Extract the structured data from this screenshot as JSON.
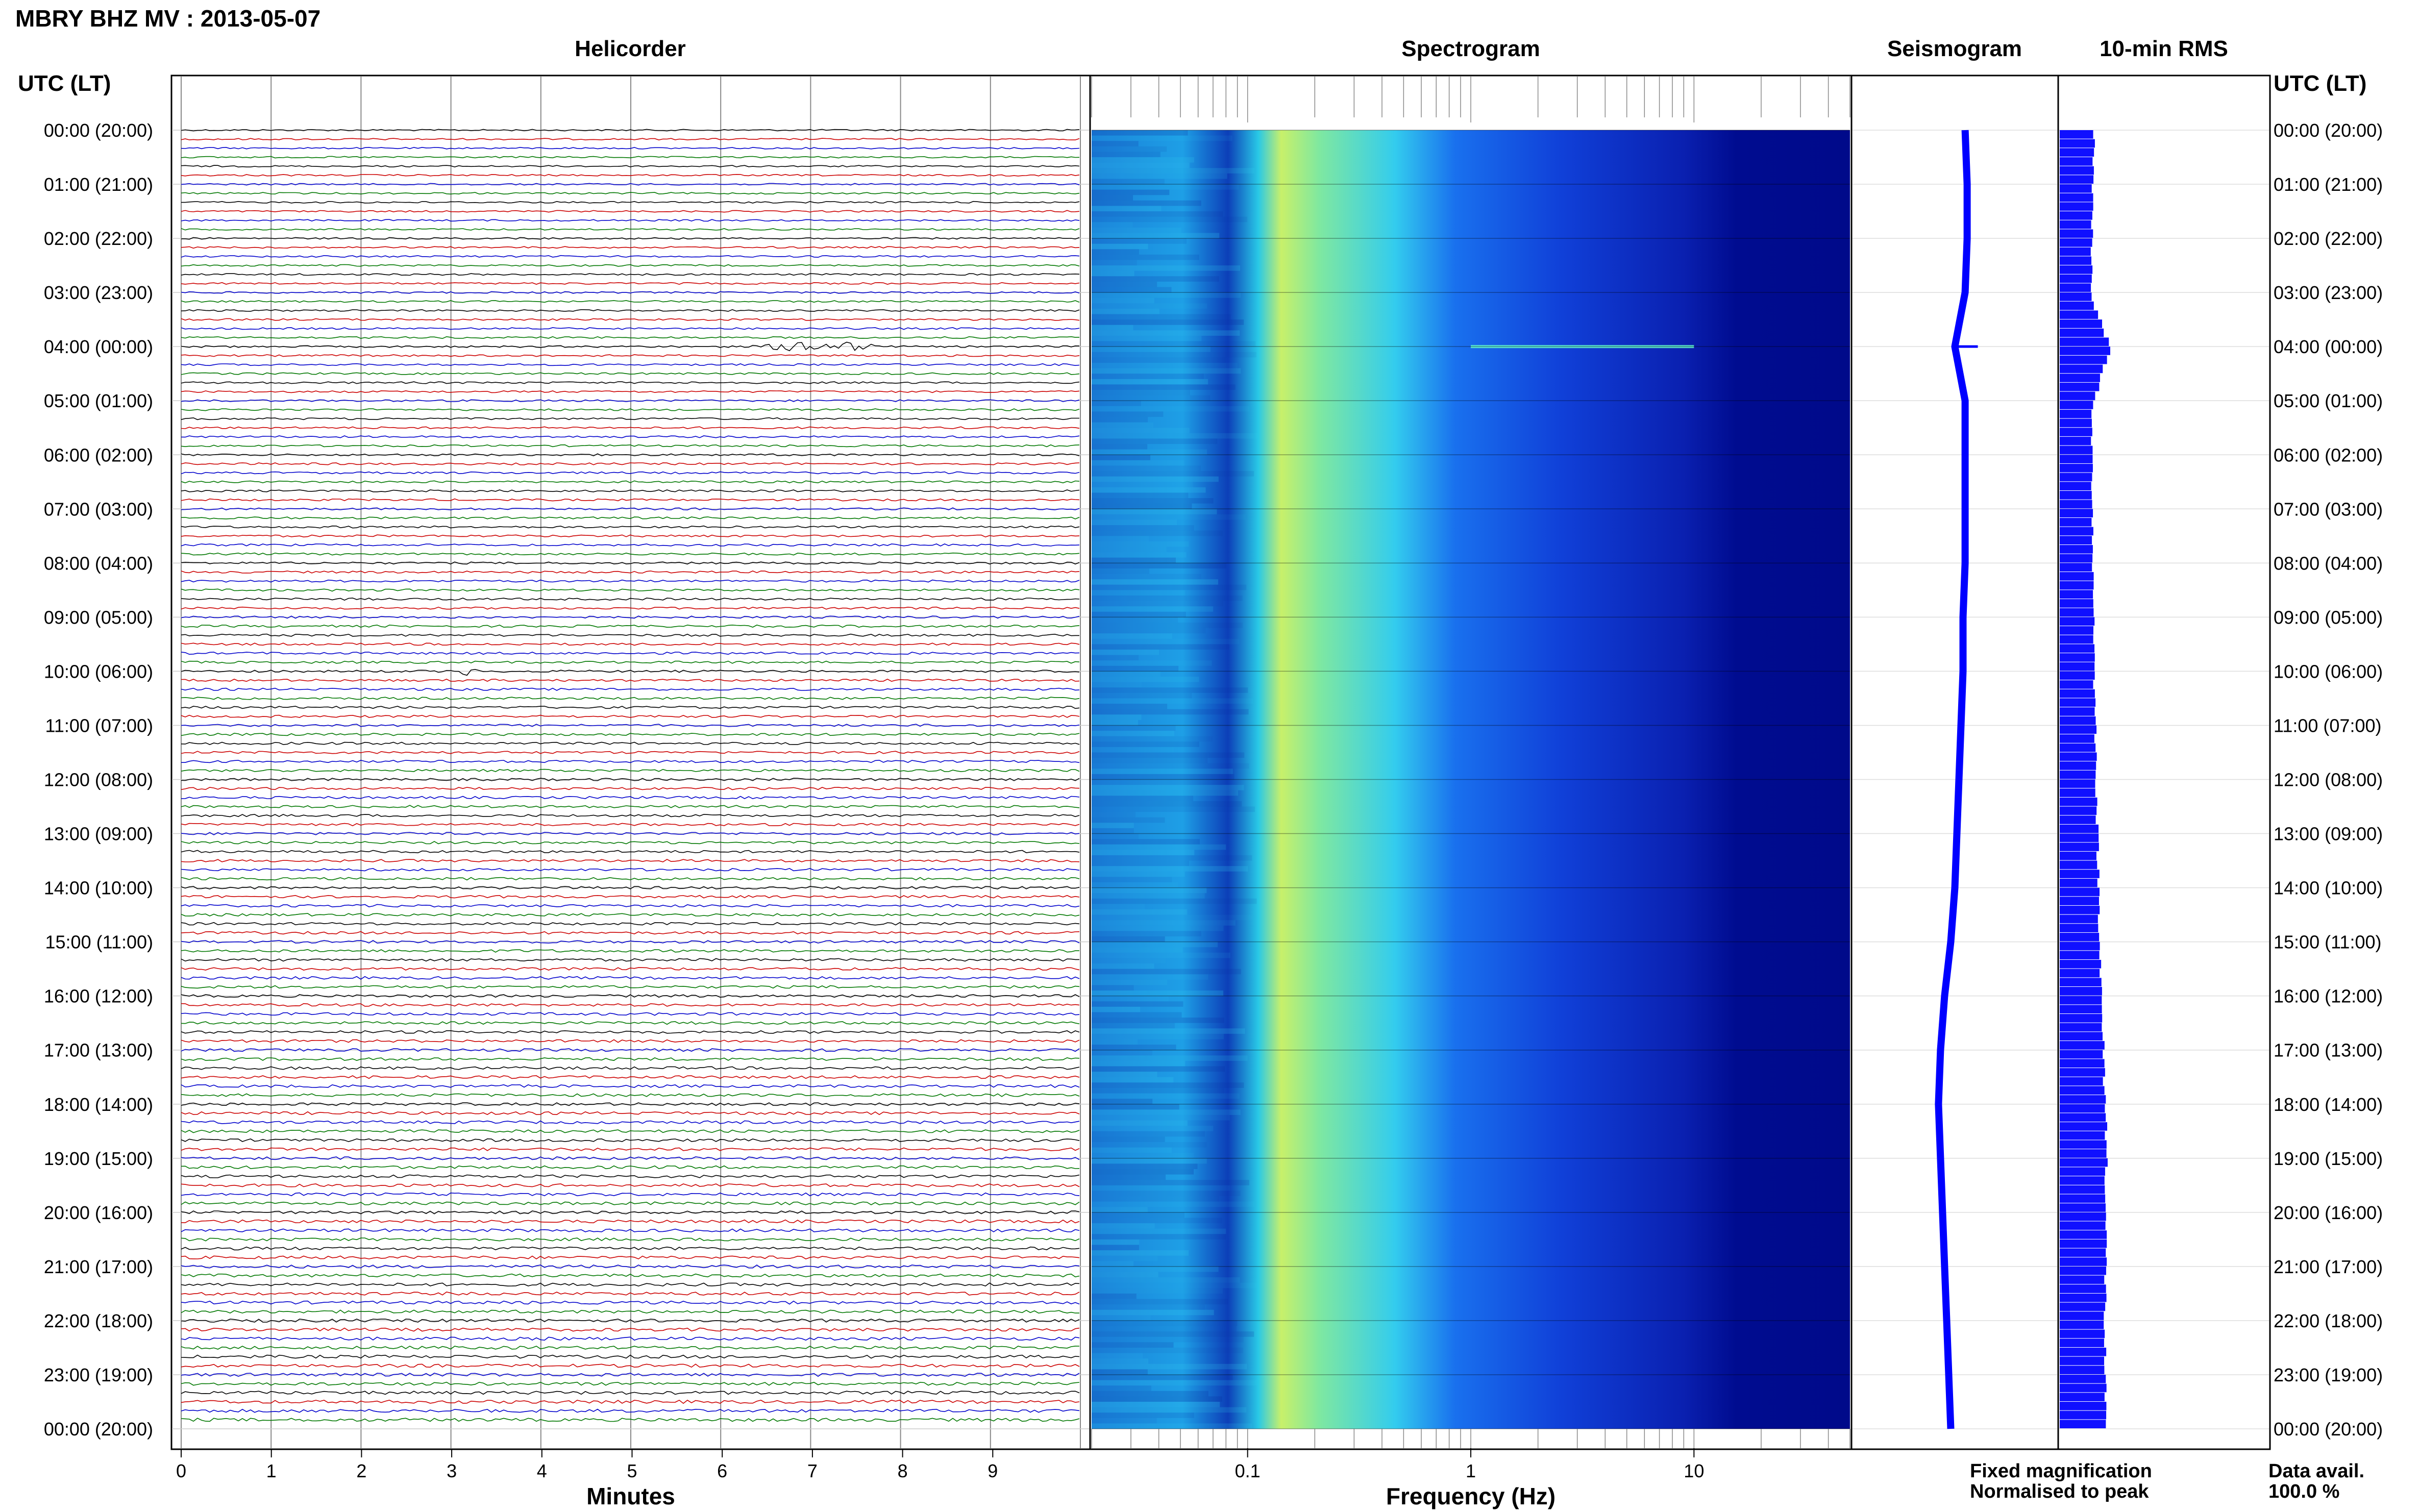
{
  "header": {
    "title": "MBRY BHZ MV : 2013-05-07"
  },
  "panels": {
    "helicorder": "Helicorder",
    "spectrogram": "Spectrogram",
    "seismogram": "Seismogram",
    "rms": "10-min RMS"
  },
  "time_axis": {
    "label_left": "UTC (LT)",
    "label_right": "UTC (LT)",
    "ticks": [
      "00:00 (20:00)",
      "01:00 (21:00)",
      "02:00 (22:00)",
      "03:00 (23:00)",
      "04:00 (00:00)",
      "05:00 (01:00)",
      "06:00 (02:00)",
      "07:00 (03:00)",
      "08:00 (04:00)",
      "09:00 (05:00)",
      "10:00 (06:00)",
      "11:00 (07:00)",
      "12:00 (08:00)",
      "13:00 (09:00)",
      "14:00 (10:00)",
      "15:00 (11:00)",
      "16:00 (12:00)",
      "17:00 (13:00)",
      "18:00 (14:00)",
      "19:00 (15:00)",
      "20:00 (16:00)",
      "21:00 (17:00)",
      "22:00 (18:00)",
      "23:00 (19:00)",
      "00:00 (20:00)"
    ]
  },
  "legend": {
    "fixed": "Fixed magnification",
    "normalised": "Normalised to peak",
    "fixed_color": "#0000ff",
    "normalised_color": "#ff0000"
  },
  "availability": {
    "label": "Data avail.",
    "value": "100.0 %"
  },
  "colors": {
    "trace_cycle": [
      "#000000",
      "#cc0000",
      "#0000cc",
      "#007700"
    ],
    "rms_fill": "#1010ff",
    "seismogram_line": "#0000ff",
    "spectrogram_low": "#000080",
    "spectrogram_high": "#ffff66"
  },
  "chart_data": [
    {
      "type": "line",
      "panel": "Helicorder",
      "xlabel": "Minutes",
      "x_ticks": [
        0,
        1,
        2,
        3,
        4,
        5,
        6,
        7,
        8,
        9
      ],
      "xlim": [
        0,
        10
      ],
      "rows_per_hour": 6,
      "hours": 24,
      "events": [
        {
          "hour": 4,
          "row": 0,
          "start_min": 6.3,
          "end_min": 7.9,
          "amplitude": 3.0
        },
        {
          "hour": 10,
          "row": 0,
          "start_min": 3.0,
          "end_min": 3.3,
          "amplitude": 2.0
        }
      ]
    },
    {
      "type": "heatmap",
      "panel": "Spectrogram",
      "xlabel": "Frequency (Hz)",
      "x_scale": "log",
      "xlim": [
        0.02,
        50
      ],
      "x_ticks": [
        0.1,
        1,
        10
      ],
      "x_tick_labels": [
        "0.1",
        "1",
        "10"
      ],
      "features": [
        {
          "band_hz": [
            0.15,
            0.2
          ],
          "note": "strongest energy, persistent microseism band"
        },
        {
          "band_hz": [
            0.2,
            1.0
          ],
          "note": "moderate energy decaying with frequency"
        },
        {
          "band_hz": [
            10,
            50
          ],
          "note": "low energy"
        }
      ],
      "events": [
        {
          "time_utc": "04:00",
          "freq_range_hz": [
            1,
            10
          ]
        }
      ]
    },
    {
      "type": "line",
      "panel": "Seismogram",
      "x_hours": [
        0,
        1,
        2,
        3,
        4,
        5,
        6,
        7,
        8,
        9,
        10,
        11,
        12,
        13,
        14,
        15,
        16,
        17,
        18,
        19,
        20,
        21,
        22,
        23,
        24
      ],
      "offset": [
        0.55,
        0.56,
        0.56,
        0.55,
        0.5,
        0.55,
        0.55,
        0.55,
        0.55,
        0.54,
        0.54,
        0.53,
        0.52,
        0.51,
        0.5,
        0.48,
        0.45,
        0.43,
        0.42,
        0.43,
        0.44,
        0.45,
        0.46,
        0.47,
        0.48
      ]
    },
    {
      "type": "bar",
      "panel": "10-min RMS",
      "x_hours": [
        0,
        1,
        2,
        3,
        4,
        5,
        6,
        7,
        8,
        9,
        10,
        11,
        12,
        13,
        14,
        15,
        16,
        17,
        18,
        19,
        20,
        21,
        22,
        23,
        24
      ],
      "rms": [
        0.75,
        0.72,
        0.7,
        0.7,
        1.1,
        0.7,
        0.7,
        0.72,
        0.72,
        0.75,
        0.75,
        0.78,
        0.8,
        0.82,
        0.85,
        0.88,
        0.9,
        0.95,
        1.0,
        1.02,
        1.0,
        1.0,
        0.98,
        0.98,
        0.98
      ],
      "peak": {
        "time_utc": "04:00",
        "rms": 1.1
      }
    }
  ]
}
